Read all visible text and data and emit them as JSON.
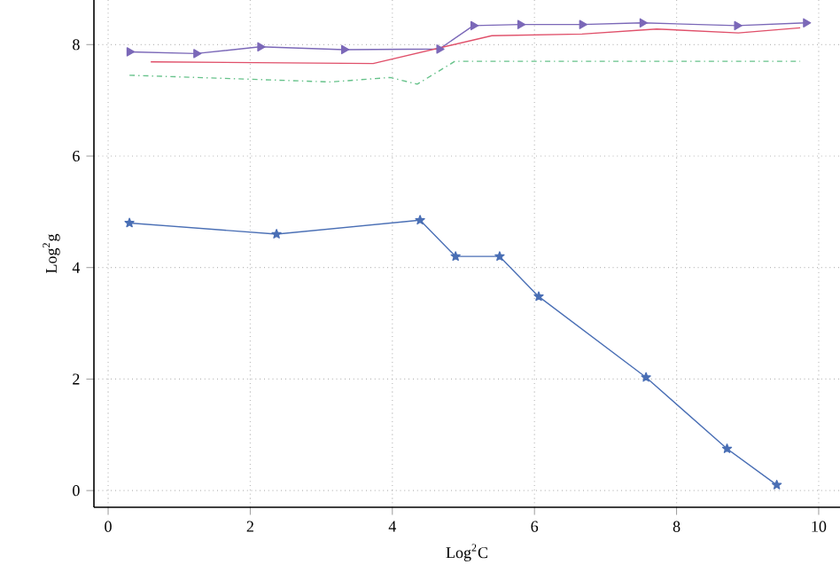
{
  "chart_data": {
    "type": "line",
    "xlabel": "Log$^{2}$C",
    "ylabel": "Log$^{2}$g",
    "xlim": [
      -0.2,
      10.3
    ],
    "ylim": [
      -0.3,
      8.8
    ],
    "xticks": [
      0,
      2,
      4,
      6,
      8,
      10
    ],
    "yticks": [
      0,
      2,
      4,
      6,
      8
    ],
    "grid": true,
    "series": [
      {
        "color": "#4a6fb5",
        "marker": "star",
        "line_style": "solid",
        "x": [
          0.3,
          2.37,
          4.39,
          4.89,
          5.51,
          6.06,
          7.57,
          8.71,
          9.41
        ],
        "values": [
          4.8,
          4.6,
          4.85,
          4.2,
          4.2,
          3.48,
          2.03,
          0.75,
          0.1
        ]
      },
      {
        "color": "#7b68b8",
        "marker": "triangle",
        "line_style": "solid",
        "x": [
          0.3,
          1.24,
          2.14,
          3.32,
          4.66,
          5.14,
          5.8,
          6.67,
          7.52,
          8.85,
          9.82
        ],
        "values": [
          7.87,
          7.84,
          7.96,
          7.91,
          7.92,
          8.34,
          8.36,
          8.36,
          8.39,
          8.34,
          8.39
        ]
      },
      {
        "color": "#e0506a",
        "marker": "none",
        "line_style": "solid",
        "x": [
          0.6,
          3.73,
          5.4,
          6.67,
          7.72,
          8.87,
          9.74
        ],
        "values": [
          7.69,
          7.66,
          8.16,
          8.19,
          8.28,
          8.21,
          8.3
        ]
      },
      {
        "color": "#66c28a",
        "marker": "none",
        "line_style": "dashdot",
        "x": [
          0.3,
          1.97,
          3.13,
          3.97,
          4.35,
          4.88,
          9.74
        ],
        "values": [
          7.45,
          7.38,
          7.33,
          7.41,
          7.29,
          7.7,
          7.7
        ]
      }
    ]
  }
}
